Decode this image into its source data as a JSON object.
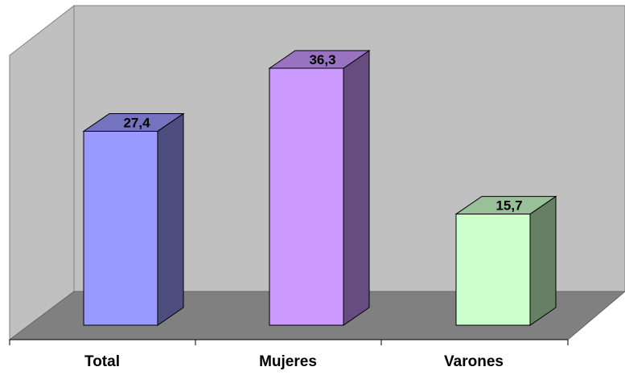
{
  "chart_data": {
    "type": "bar",
    "categories": [
      "Total",
      "Mujeres",
      "Varones"
    ],
    "values": [
      27.4,
      36.3,
      15.7
    ],
    "value_labels": [
      "27,4",
      "36,3",
      "15,7"
    ],
    "title": "",
    "xlabel": "",
    "ylabel": "",
    "ylim": [
      0,
      40
    ],
    "grid": false,
    "legend": "none",
    "style": "3d-column",
    "colors": {
      "bars": [
        {
          "front": "#9999ff",
          "side": "#4d4d80",
          "top": "#7373c0"
        },
        {
          "front": "#cc99ff",
          "side": "#664d80",
          "top": "#9973c0"
        },
        {
          "front": "#ccffcc",
          "side": "#668066",
          "top": "#99c099"
        }
      ],
      "back_wall": "#c0c0c0",
      "side_wall": "#c0c0c0",
      "floor": "#808080"
    }
  }
}
